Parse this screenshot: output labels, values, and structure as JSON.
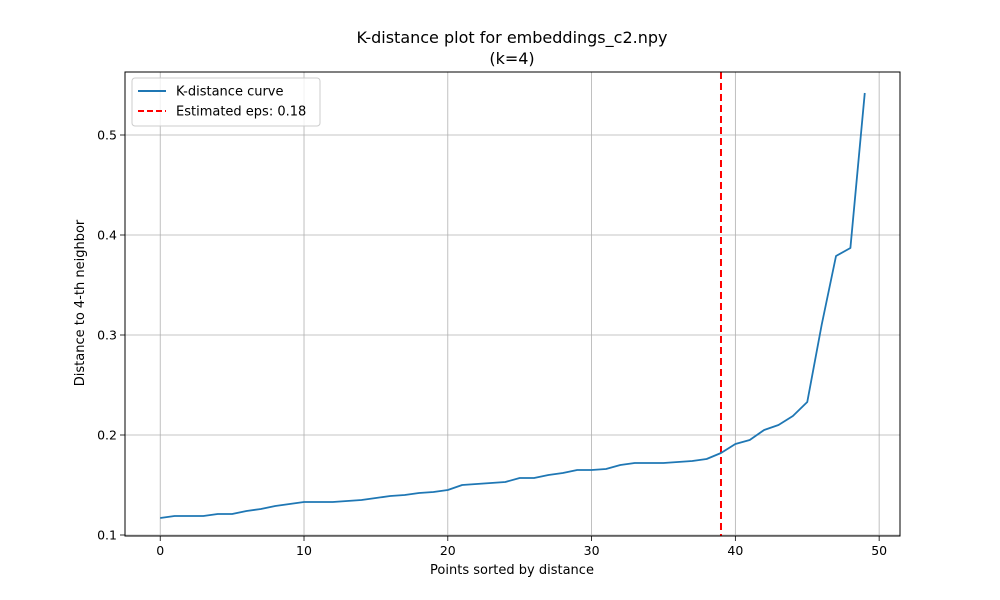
{
  "chart_data": {
    "type": "line",
    "title": "K-distance plot for embeddings_c2.npy",
    "subtitle": "(k=4)",
    "xlabel": "Points sorted by distance",
    "ylabel": "Distance to 4-th neighbor",
    "xlim": [
      -2.45,
      51.45
    ],
    "ylim": [
      0.099,
      0.563
    ],
    "xticks": [
      0,
      10,
      20,
      30,
      40,
      50
    ],
    "xtick_labels": [
      "0",
      "10",
      "20",
      "30",
      "40",
      "50"
    ],
    "yticks": [
      0.1,
      0.2,
      0.3,
      0.4,
      0.5
    ],
    "ytick_labels": [
      "0.1",
      "0.2",
      "0.3",
      "0.4",
      "0.5"
    ],
    "grid": true,
    "legend_position": "top-left",
    "series": [
      {
        "name": "K-distance curve",
        "color": "#1f77b4",
        "style": "solid",
        "x": [
          0,
          1,
          2,
          3,
          4,
          5,
          6,
          7,
          8,
          9,
          10,
          11,
          12,
          13,
          14,
          15,
          16,
          17,
          18,
          19,
          20,
          21,
          22,
          23,
          24,
          25,
          26,
          27,
          28,
          29,
          30,
          31,
          32,
          33,
          34,
          35,
          36,
          37,
          38,
          39,
          40,
          41,
          42,
          43,
          44,
          45,
          46,
          47,
          48,
          49
        ],
        "values": [
          0.117,
          0.119,
          0.119,
          0.119,
          0.121,
          0.121,
          0.124,
          0.126,
          0.129,
          0.131,
          0.133,
          0.133,
          0.133,
          0.134,
          0.135,
          0.137,
          0.139,
          0.14,
          0.142,
          0.143,
          0.145,
          0.15,
          0.151,
          0.152,
          0.153,
          0.157,
          0.157,
          0.16,
          0.162,
          0.165,
          0.165,
          0.166,
          0.17,
          0.172,
          0.172,
          0.172,
          0.173,
          0.174,
          0.176,
          0.182,
          0.191,
          0.195,
          0.205,
          0.21,
          0.219,
          0.233,
          0.31,
          0.379,
          0.387,
          0.542
        ]
      }
    ],
    "reference_line": {
      "name": "Estimated eps: 0.18",
      "orientation": "vertical",
      "x": 39,
      "color": "#ff0000",
      "style": "dashed"
    }
  }
}
